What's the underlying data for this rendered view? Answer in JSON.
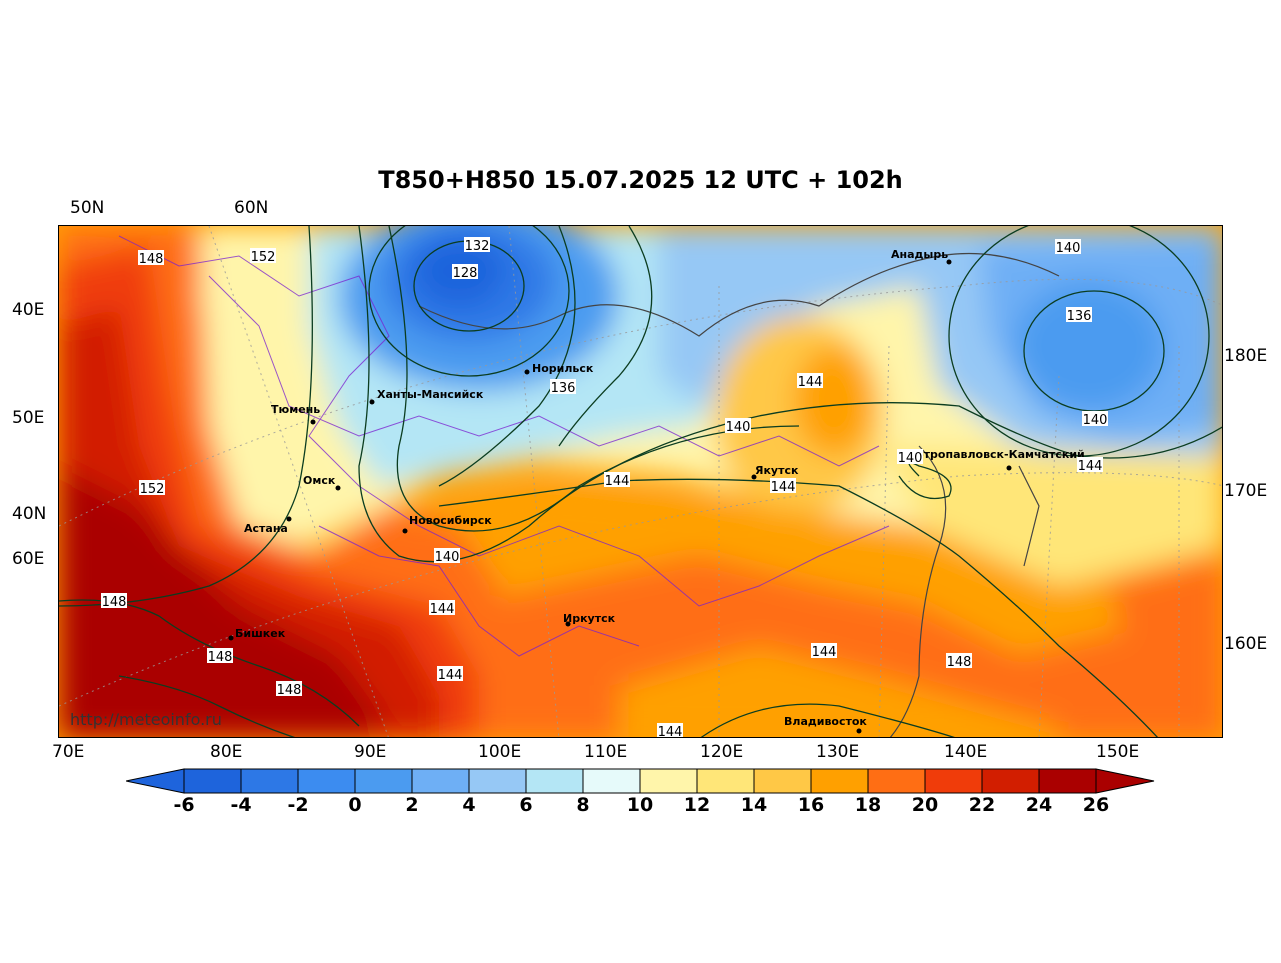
{
  "title": "T850+H850 15.07.2025 12 UTC + 102h",
  "lat_labels_top": [
    "50N",
    "60N"
  ],
  "lat_labels_left": [
    "40E",
    "50E",
    "40N",
    "60E"
  ],
  "lon_labels_right": [
    "180E",
    "170E",
    "160E"
  ],
  "lon_labels_bottom": [
    "70E",
    "80E",
    "90E",
    "100E",
    "110E",
    "120E",
    "130E",
    "140E",
    "150E"
  ],
  "colorbar": {
    "ticks": [
      "-6",
      "-4",
      "-2",
      "0",
      "2",
      "4",
      "6",
      "8",
      "10",
      "12",
      "14",
      "16",
      "18",
      "20",
      "22",
      "24",
      "26"
    ],
    "colors": [
      "#1e64dc",
      "#2d78e6",
      "#3c8cf0",
      "#4b9bf0",
      "#6eaff5",
      "#96c8f5",
      "#b4e6f5",
      "#e6fafa",
      "#fff5aa",
      "#ffe678",
      "#ffc846",
      "#ffa000",
      "#ff6e14",
      "#f03c0a",
      "#d21e00",
      "#aa0000"
    ]
  },
  "cities": [
    {
      "name": "Норильск"
    },
    {
      "name": "Ханты-Мансийск"
    },
    {
      "name": "Тюмень"
    },
    {
      "name": "Омск"
    },
    {
      "name": "Астана"
    },
    {
      "name": "Новосибирск"
    },
    {
      "name": "Бишкек"
    },
    {
      "name": "Иркутск"
    },
    {
      "name": "Якутск"
    },
    {
      "name": "Анадырь"
    },
    {
      "name": "Петропавловск-Камчатский"
    },
    {
      "name": "Владивосток"
    }
  ],
  "contour_labels": [
    "148",
    "152",
    "132",
    "128",
    "136",
    "144",
    "140",
    "152",
    "140",
    "144",
    "148",
    "148",
    "148",
    "144",
    "144",
    "140",
    "144",
    "144",
    "140",
    "136",
    "140",
    "144",
    "148",
    "144"
  ],
  "url": "http://meteoinfo.ru"
}
